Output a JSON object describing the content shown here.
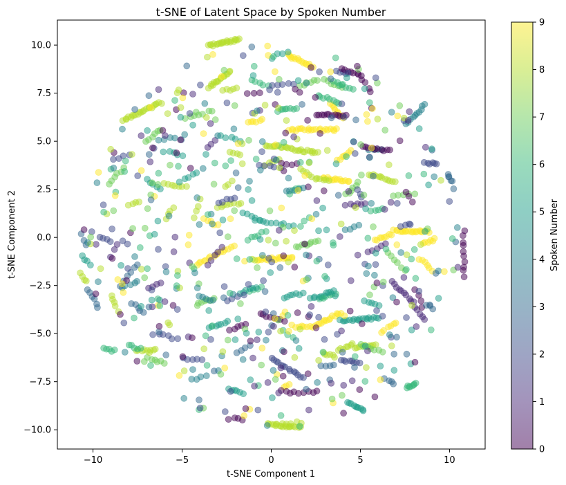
{
  "chart_data": {
    "type": "scatter",
    "title": "t-SNE of Latent Space by Spoken Number",
    "xlabel": "t-SNE Component 1",
    "ylabel": "t-SNE Component 2",
    "xlim": [
      -12,
      12
    ],
    "ylim": [
      -11,
      11.3
    ],
    "xticks": [
      -10,
      -5,
      0,
      5,
      10
    ],
    "yticks": [
      -10.0,
      -7.5,
      -5.0,
      -2.5,
      0.0,
      2.5,
      5.0,
      7.5,
      10.0
    ],
    "ytick_labels": [
      "−10.0",
      "−7.5",
      "−5.0",
      "−2.5",
      "0.0",
      "2.5",
      "5.0",
      "7.5",
      "10.0"
    ],
    "xtick_labels": [
      "−10",
      "−5",
      "0",
      "5",
      "10"
    ],
    "grid": false,
    "marker_alpha": 0.5,
    "colorbar": {
      "label": "Spoken Number",
      "min": 0,
      "max": 9,
      "ticks": [
        0,
        1,
        2,
        3,
        4,
        5,
        6,
        7,
        8,
        9
      ],
      "colormap": "viridis"
    },
    "clusters": [
      {
        "label": 8,
        "x0": -3.5,
        "y0": 9.95,
        "x1": -1.8,
        "y1": 10.3,
        "n": 22
      },
      {
        "label": 8,
        "x0": -3.5,
        "y0": 7.8,
        "x1": -2.3,
        "y1": 8.6,
        "n": 16
      },
      {
        "label": 8,
        "x0": -8.3,
        "y0": 6.1,
        "x1": -6.2,
        "y1": 7.0,
        "n": 22
      },
      {
        "label": 8,
        "x0": -2.7,
        "y0": 7.6,
        "x1": -2.0,
        "y1": 7.8,
        "n": 5
      },
      {
        "label": 9,
        "x0": 0.9,
        "y0": 9.5,
        "x1": 2.3,
        "y1": 8.9,
        "n": 15
      },
      {
        "label": 9,
        "x0": 3.3,
        "y0": 7.0,
        "x1": 4.0,
        "y1": 6.2,
        "n": 8
      },
      {
        "label": 9,
        "x0": 1.0,
        "y0": 5.6,
        "x1": 3.7,
        "y1": 5.6,
        "n": 22
      },
      {
        "label": 9,
        "x0": -1.3,
        "y0": 5.95,
        "x1": -0.5,
        "y1": 6.1,
        "n": 6
      },
      {
        "label": 9,
        "x0": 2.9,
        "y0": 3.1,
        "x1": 4.4,
        "y1": 2.9,
        "n": 14
      },
      {
        "label": 9,
        "x0": 3.7,
        "y0": 4.0,
        "x1": 4.5,
        "y1": 4.5,
        "n": 7
      },
      {
        "label": 9,
        "x0": 6.9,
        "y0": 0.35,
        "x1": 8.8,
        "y1": 0.3,
        "n": 20
      },
      {
        "label": 9,
        "x0": 5.8,
        "y0": -0.15,
        "x1": 6.8,
        "y1": 0.15,
        "n": 8
      },
      {
        "label": 9,
        "x0": 8.5,
        "y0": -0.3,
        "x1": 9.2,
        "y1": -0.1,
        "n": 6
      },
      {
        "label": 9,
        "x0": -0.8,
        "y0": -1.15,
        "x1": 1.2,
        "y1": -1.05,
        "n": 20
      },
      {
        "label": 9,
        "x0": -4.2,
        "y0": -1.4,
        "x1": -2.3,
        "y1": -0.5,
        "n": 15
      },
      {
        "label": 9,
        "x0": 2.5,
        "y0": -4.6,
        "x1": 3.9,
        "y1": -3.9,
        "n": 14
      },
      {
        "label": 9,
        "x0": 1.2,
        "y0": -4.6,
        "x1": 2.3,
        "y1": -4.7,
        "n": 8
      },
      {
        "label": 9,
        "x0": 6.2,
        "y0": -4.9,
        "x1": 7.0,
        "y1": -4.4,
        "n": 6
      },
      {
        "label": 9,
        "x0": 8.3,
        "y0": -1.1,
        "x1": 9.0,
        "y1": -1.7,
        "n": 6
      },
      {
        "label": 9,
        "x0": -3.8,
        "y0": 1.0,
        "x1": -3.0,
        "y1": 0.6,
        "n": 5
      },
      {
        "label": 9,
        "x0": 0.7,
        "y0": -7.8,
        "x1": 1.0,
        "y1": -7.6,
        "n": 3
      },
      {
        "label": 8,
        "x0": -0.3,
        "y0": 4.8,
        "x1": 2.6,
        "y1": 4.4,
        "n": 26
      },
      {
        "label": 8,
        "x0": -0.2,
        "y0": -9.7,
        "x1": 1.6,
        "y1": -9.9,
        "n": 18
      },
      {
        "label": 8,
        "x0": 0.3,
        "y0": -9.7,
        "x1": 1.7,
        "y1": -9.6,
        "n": 6
      },
      {
        "label": 8,
        "x0": 5.5,
        "y0": 3.3,
        "x1": 6.9,
        "y1": 2.9,
        "n": 12
      },
      {
        "label": 8,
        "x0": 2.3,
        "y0": 3.1,
        "x1": 3.2,
        "y1": 3.0,
        "n": 7
      },
      {
        "label": 8,
        "x0": 3.8,
        "y0": -5.9,
        "x1": 4.6,
        "y1": -5.5,
        "n": 7
      },
      {
        "label": 8,
        "x0": 2.9,
        "y0": -6.0,
        "x1": 3.6,
        "y1": -6.2,
        "n": 6
      },
      {
        "label": 8,
        "x0": 4.7,
        "y0": -5.7,
        "x1": 5.9,
        "y1": -5.6,
        "n": 9
      },
      {
        "label": 8,
        "x0": -9.0,
        "y0": -3.0,
        "x1": -8.6,
        "y1": -3.8,
        "n": 5
      },
      {
        "label": 8,
        "x0": -10.7,
        "y0": -1.9,
        "x1": -10.4,
        "y1": -2.3,
        "n": 4
      },
      {
        "label": 8,
        "x0": -7.6,
        "y0": -5.9,
        "x1": -6.5,
        "y1": -5.8,
        "n": 8
      },
      {
        "label": 8,
        "x0": -4.3,
        "y0": 1.0,
        "x1": -4.0,
        "y1": 2.0,
        "n": 4
      },
      {
        "label": 8,
        "x0": -3.0,
        "y0": 1.6,
        "x1": -1.7,
        "y1": 1.8,
        "n": 8
      },
      {
        "label": 8,
        "x0": -6.0,
        "y0": 2.8,
        "x1": -4.8,
        "y1": 2.6,
        "n": 7
      },
      {
        "label": 8,
        "x0": -8.0,
        "y0": 1.7,
        "x1": -7.4,
        "y1": 1.9,
        "n": 4
      },
      {
        "label": 8,
        "x0": -1.7,
        "y0": 4.3,
        "x1": -2.3,
        "y1": 4.4,
        "n": 4
      },
      {
        "label": 8,
        "x0": -5.9,
        "y0": 1.0,
        "x1": -5.5,
        "y1": 1.5,
        "n": 4
      },
      {
        "label": 8,
        "x0": -2.2,
        "y0": 2.9,
        "x1": -2.6,
        "y1": 2.6,
        "n": 3
      },
      {
        "label": 8,
        "x0": -0.3,
        "y0": 3.8,
        "x1": 0.4,
        "y1": 4.0,
        "n": 5
      },
      {
        "label": 8,
        "x0": 1.6,
        "y0": 3.6,
        "x1": 2.1,
        "y1": 3.2,
        "n": 4
      },
      {
        "label": 7,
        "x0": 1.4,
        "y0": -0.5,
        "x1": 2.6,
        "y1": -0.2,
        "n": 9
      },
      {
        "label": 7,
        "x0": 4.2,
        "y0": 2.2,
        "x1": 4.9,
        "y1": 2.9,
        "n": 6
      },
      {
        "label": 7,
        "x0": 5.0,
        "y0": -5.6,
        "x1": 6.2,
        "y1": -5.9,
        "n": 7
      },
      {
        "label": 7,
        "x0": -4.2,
        "y0": -3.5,
        "x1": -3.2,
        "y1": -3.2,
        "n": 7
      },
      {
        "label": 7,
        "x0": 6.5,
        "y0": -0.8,
        "x1": 7.5,
        "y1": -1.7,
        "n": 6
      },
      {
        "label": 7,
        "x0": -6.9,
        "y0": -6.3,
        "x1": -6.0,
        "y1": -6.5,
        "n": 6
      },
      {
        "label": 7,
        "x0": -9.1,
        "y0": 2.8,
        "x1": -8.3,
        "y1": 3.6,
        "n": 6
      },
      {
        "label": 7,
        "x0": -7.0,
        "y0": 5.0,
        "x1": -6.2,
        "y1": 5.6,
        "n": 6
      },
      {
        "label": 7,
        "x0": 3.0,
        "y0": 8.2,
        "x1": 4.0,
        "y1": 7.8,
        "n": 6
      },
      {
        "label": 7,
        "x0": -4.8,
        "y0": 6.2,
        "x1": -3.3,
        "y1": 6.6,
        "n": 7
      },
      {
        "label": 7,
        "x0": 1.6,
        "y0": 7.9,
        "x1": 2.6,
        "y1": 8.2,
        "n": 6
      },
      {
        "label": 7,
        "x0": 6.9,
        "y0": 2.1,
        "x1": 8.0,
        "y1": 2.3,
        "n": 5
      },
      {
        "label": 6,
        "x0": 7.6,
        "y0": -7.8,
        "x1": 8.1,
        "y1": -7.6,
        "n": 8
      },
      {
        "label": 6,
        "x0": -9.4,
        "y0": -5.8,
        "x1": -8.8,
        "y1": -5.9,
        "n": 5
      },
      {
        "label": 6,
        "x0": -8.0,
        "y0": -5.6,
        "x1": -7.3,
        "y1": -5.8,
        "n": 5
      },
      {
        "label": 6,
        "x0": 2.6,
        "y0": 7.4,
        "x1": 3.8,
        "y1": 7.0,
        "n": 8
      },
      {
        "label": 6,
        "x0": 0.4,
        "y0": 6.6,
        "x1": 1.4,
        "y1": 6.7,
        "n": 7
      },
      {
        "label": 6,
        "x0": 3.5,
        "y0": 8.1,
        "x1": 4.6,
        "y1": 7.7,
        "n": 7
      },
      {
        "label": 6,
        "x0": 2.7,
        "y0": -3.2,
        "x1": 3.6,
        "y1": -2.9,
        "n": 6
      },
      {
        "label": 6,
        "x0": 1.0,
        "y0": 2.3,
        "x1": 1.6,
        "y1": 2.6,
        "n": 4
      },
      {
        "label": 6,
        "x0": -1.3,
        "y0": -0.1,
        "x1": -0.3,
        "y1": 0.3,
        "n": 6
      },
      {
        "label": 6,
        "x0": 1.7,
        "y0": 0.6,
        "x1": 2.1,
        "y1": 1.0,
        "n": 3
      },
      {
        "label": 6,
        "x0": 5.6,
        "y0": 1.4,
        "x1": 6.2,
        "y1": 1.5,
        "n": 4
      },
      {
        "label": 6,
        "x0": -1.1,
        "y0": 8.2,
        "x1": -0.2,
        "y1": 7.9,
        "n": 5
      },
      {
        "label": 6,
        "x0": 0.7,
        "y0": -4.8,
        "x1": 1.2,
        "y1": -5.2,
        "n": 3
      },
      {
        "label": 6,
        "x0": -1.2,
        "y0": -2.8,
        "x1": -0.5,
        "y1": -2.6,
        "n": 4
      },
      {
        "label": 5,
        "x0": 2.2,
        "y0": -3.2,
        "x1": 3.5,
        "y1": -2.8,
        "n": 10
      },
      {
        "label": 5,
        "x0": 0.7,
        "y0": -3.1,
        "x1": 1.8,
        "y1": -2.9,
        "n": 7
      },
      {
        "label": 5,
        "x0": 3.9,
        "y0": -4.3,
        "x1": 6.0,
        "y1": -4.2,
        "n": 18
      },
      {
        "label": 5,
        "x0": 4.3,
        "y0": -8.6,
        "x1": 5.2,
        "y1": -9.0,
        "n": 10
      },
      {
        "label": 5,
        "x0": -2.4,
        "y0": -7.9,
        "x1": -1.6,
        "y1": -8.1,
        "n": 6
      },
      {
        "label": 5,
        "x0": -1.8,
        "y0": -2.9,
        "x1": -0.8,
        "y1": -2.6,
        "n": 6
      },
      {
        "label": 5,
        "x0": -3.5,
        "y0": -4.7,
        "x1": -2.4,
        "y1": -4.4,
        "n": 7
      },
      {
        "label": 5,
        "x0": -1.6,
        "y0": 1.3,
        "x1": -0.6,
        "y1": 0.9,
        "n": 5
      },
      {
        "label": 5,
        "x0": -0.9,
        "y0": 0.9,
        "x1": 1.2,
        "y1": 0.6,
        "n": 10
      },
      {
        "label": 5,
        "x0": -5.1,
        "y0": 2.9,
        "x1": -4.2,
        "y1": 3.4,
        "n": 5
      },
      {
        "label": 5,
        "x0": -6.0,
        "y0": 4.5,
        "x1": -5.0,
        "y1": 4.3,
        "n": 5
      },
      {
        "label": 5,
        "x0": -2.8,
        "y0": 5.3,
        "x1": -1.7,
        "y1": 5.0,
        "n": 5
      },
      {
        "label": 5,
        "x0": -7.0,
        "y0": 3.0,
        "x1": -6.2,
        "y1": 2.5,
        "n": 5
      },
      {
        "label": 5,
        "x0": 0.4,
        "y0": 9.5,
        "x1": 0.9,
        "y1": 9.6,
        "n": 3
      },
      {
        "label": 5,
        "x0": 5.2,
        "y0": -3.3,
        "x1": 6.1,
        "y1": -3.5,
        "n": 5
      },
      {
        "label": 5,
        "x0": -10.6,
        "y0": -1.0,
        "x1": -10.2,
        "y1": -1.4,
        "n": 4
      },
      {
        "label": 4,
        "x0": -4.1,
        "y0": -3.1,
        "x1": -3.3,
        "y1": -3.3,
        "n": 5
      },
      {
        "label": 4,
        "x0": -8.4,
        "y0": -2.6,
        "x1": -7.7,
        "y1": -2.4,
        "n": 4
      },
      {
        "label": 4,
        "x0": 5.5,
        "y0": 4.6,
        "x1": 6.2,
        "y1": 4.6,
        "n": 5
      },
      {
        "label": 4,
        "x0": 7.6,
        "y0": 5.9,
        "x1": 8.6,
        "y1": 6.9,
        "n": 10
      },
      {
        "label": 4,
        "x0": -4.5,
        "y0": -7.4,
        "x1": -3.6,
        "y1": -7.2,
        "n": 4
      },
      {
        "label": 4,
        "x0": 0.8,
        "y0": 2.4,
        "x1": 1.8,
        "y1": 2.6,
        "n": 5
      },
      {
        "label": 4,
        "x0": 4.2,
        "y0": 0.4,
        "x1": 4.9,
        "y1": 0.6,
        "n": 4
      },
      {
        "label": 3,
        "x0": 9.9,
        "y0": 3.3,
        "x1": 10.1,
        "y1": 2.9,
        "n": 5
      },
      {
        "label": 3,
        "x0": -10.3,
        "y0": -2.7,
        "x1": -9.7,
        "y1": -3.6,
        "n": 6
      },
      {
        "label": 3,
        "x0": -7.8,
        "y0": -3.4,
        "x1": -7.2,
        "y1": -3.9,
        "n": 5
      },
      {
        "label": 3,
        "x0": 2.8,
        "y0": -6.7,
        "x1": 3.5,
        "y1": -6.6,
        "n": 4
      },
      {
        "label": 3,
        "x0": -1.9,
        "y0": -6.0,
        "x1": -1.2,
        "y1": -5.6,
        "n": 4
      },
      {
        "label": 3,
        "x0": 6.4,
        "y0": -7.3,
        "x1": 6.9,
        "y1": -7.6,
        "n": 4
      },
      {
        "label": 2,
        "x0": 0.0,
        "y0": -6.3,
        "x1": 1.8,
        "y1": -7.3,
        "n": 14
      },
      {
        "label": 2,
        "x0": 3.9,
        "y0": -6.4,
        "x1": 5.0,
        "y1": -6.5,
        "n": 8
      },
      {
        "label": 2,
        "x0": 8.6,
        "y0": 3.9,
        "x1": 9.3,
        "y1": 3.8,
        "n": 6
      },
      {
        "label": 2,
        "x0": -9.6,
        "y0": 0.0,
        "x1": -9.0,
        "y1": -0.2,
        "n": 4
      },
      {
        "label": 2,
        "x0": 3.7,
        "y0": 8.7,
        "x1": 4.2,
        "y1": 8.5,
        "n": 4
      },
      {
        "label": 2,
        "x0": -1.5,
        "y0": -3.0,
        "x1": -2.5,
        "y1": -3.3,
        "n": 4
      },
      {
        "label": 2,
        "x0": -6.3,
        "y0": -5.0,
        "x1": -5.3,
        "y1": -5.3,
        "n": 5
      },
      {
        "label": 2,
        "x0": -4.9,
        "y0": -6.3,
        "x1": -3.9,
        "y1": -6.4,
        "n": 5
      },
      {
        "label": 2,
        "x0": -3.0,
        "y0": 1.8,
        "x1": -2.0,
        "y1": 2.1,
        "n": 5
      },
      {
        "label": 2,
        "x0": -8.8,
        "y0": 4.0,
        "x1": -8.0,
        "y1": 4.3,
        "n": 4
      },
      {
        "label": 2,
        "x0": -0.7,
        "y0": 3.8,
        "x1": 0.5,
        "y1": 3.6,
        "n": 5
      },
      {
        "label": 2,
        "x0": 0.0,
        "y0": 7.9,
        "x1": 1.3,
        "y1": 8.0,
        "n": 5
      },
      {
        "label": 2,
        "x0": 4.8,
        "y0": 2.5,
        "x1": 5.1,
        "y1": 2.1,
        "n": 3
      },
      {
        "label": 1,
        "x0": 6.8,
        "y0": -2.3,
        "x1": 8.0,
        "y1": -3.4,
        "n": 10
      },
      {
        "label": 1,
        "x0": 8.0,
        "y0": -3.6,
        "x1": 8.6,
        "y1": -4.3,
        "n": 5
      },
      {
        "label": 1,
        "x0": 4.2,
        "y0": 1.7,
        "x1": 5.3,
        "y1": 1.7,
        "n": 6
      },
      {
        "label": 1,
        "x0": -9.0,
        "y0": -1.0,
        "x1": -8.6,
        "y1": -0.3,
        "n": 3
      },
      {
        "label": 1,
        "x0": 5.4,
        "y0": -0.8,
        "x1": 6.4,
        "y1": -0.3,
        "n": 5
      },
      {
        "label": 0,
        "x0": 2.5,
        "y0": 6.4,
        "x1": 4.2,
        "y1": 6.3,
        "n": 12
      },
      {
        "label": 0,
        "x0": 5.1,
        "y0": 4.7,
        "x1": 6.7,
        "y1": 4.5,
        "n": 10
      },
      {
        "label": 0,
        "x0": 4.0,
        "y0": 8.8,
        "x1": 5.1,
        "y1": 8.4,
        "n": 8
      },
      {
        "label": 0,
        "x0": 5.1,
        "y0": 8.2,
        "x1": 5.6,
        "y1": 7.6,
        "n": 4
      },
      {
        "label": 0,
        "x0": 10.8,
        "y0": 0.3,
        "x1": 10.8,
        "y1": -2.0,
        "n": 10
      },
      {
        "label": 0,
        "x0": -0.6,
        "y0": -4.0,
        "x1": 0.7,
        "y1": -4.3,
        "n": 8
      },
      {
        "label": 0,
        "x0": -2.3,
        "y0": -4.8,
        "x1": -1.4,
        "y1": -4.5,
        "n": 5
      },
      {
        "label": 0,
        "x0": 0.6,
        "y0": -8.0,
        "x1": 1.5,
        "y1": -8.1,
        "n": 5
      },
      {
        "label": 0,
        "x0": 1.8,
        "y0": -8.1,
        "x1": 2.6,
        "y1": -8.0,
        "n": 4
      },
      {
        "label": 0,
        "x0": -2.1,
        "y0": -9.4,
        "x1": -1.6,
        "y1": -9.5,
        "n": 3
      },
      {
        "label": 0,
        "x0": -1.3,
        "y0": 7.5,
        "x1": -0.6,
        "y1": 7.5,
        "n": 3
      },
      {
        "label": 0,
        "x0": 7.6,
        "y0": 2.4,
        "x1": 7.9,
        "y1": 1.9,
        "n": 3
      },
      {
        "label": 0,
        "x0": 8.1,
        "y0": -2.7,
        "x1": 8.5,
        "y1": -3.6,
        "n": 4
      },
      {
        "label": 1,
        "x0": -6.9,
        "y0": -2.6,
        "x1": -6.2,
        "y1": -2.4,
        "n": 4
      },
      {
        "label": 1,
        "x0": -3.6,
        "y0": -1.4,
        "x1": -2.8,
        "y1": -0.5,
        "n": 5
      },
      {
        "label": 3,
        "x0": -10.7,
        "y0": 0.2,
        "x1": -10.4,
        "y1": -0.4,
        "n": 3
      },
      {
        "label": 3,
        "x0": -8.5,
        "y0": -2.5,
        "x1": -7.5,
        "y1": -1.4,
        "n": 6
      },
      {
        "label": 4,
        "x0": -6.3,
        "y0": 5.0,
        "x1": -5.4,
        "y1": 5.2,
        "n": 4
      },
      {
        "label": 1,
        "x0": -3.6,
        "y0": 4.7,
        "x1": -3.1,
        "y1": 5.0,
        "n": 3
      },
      {
        "label": 0,
        "x0": 0.9,
        "y0": 3.8,
        "x1": 1.5,
        "y1": 3.8,
        "n": 3
      }
    ],
    "scatter_seed": 7,
    "background_points": 520
  }
}
